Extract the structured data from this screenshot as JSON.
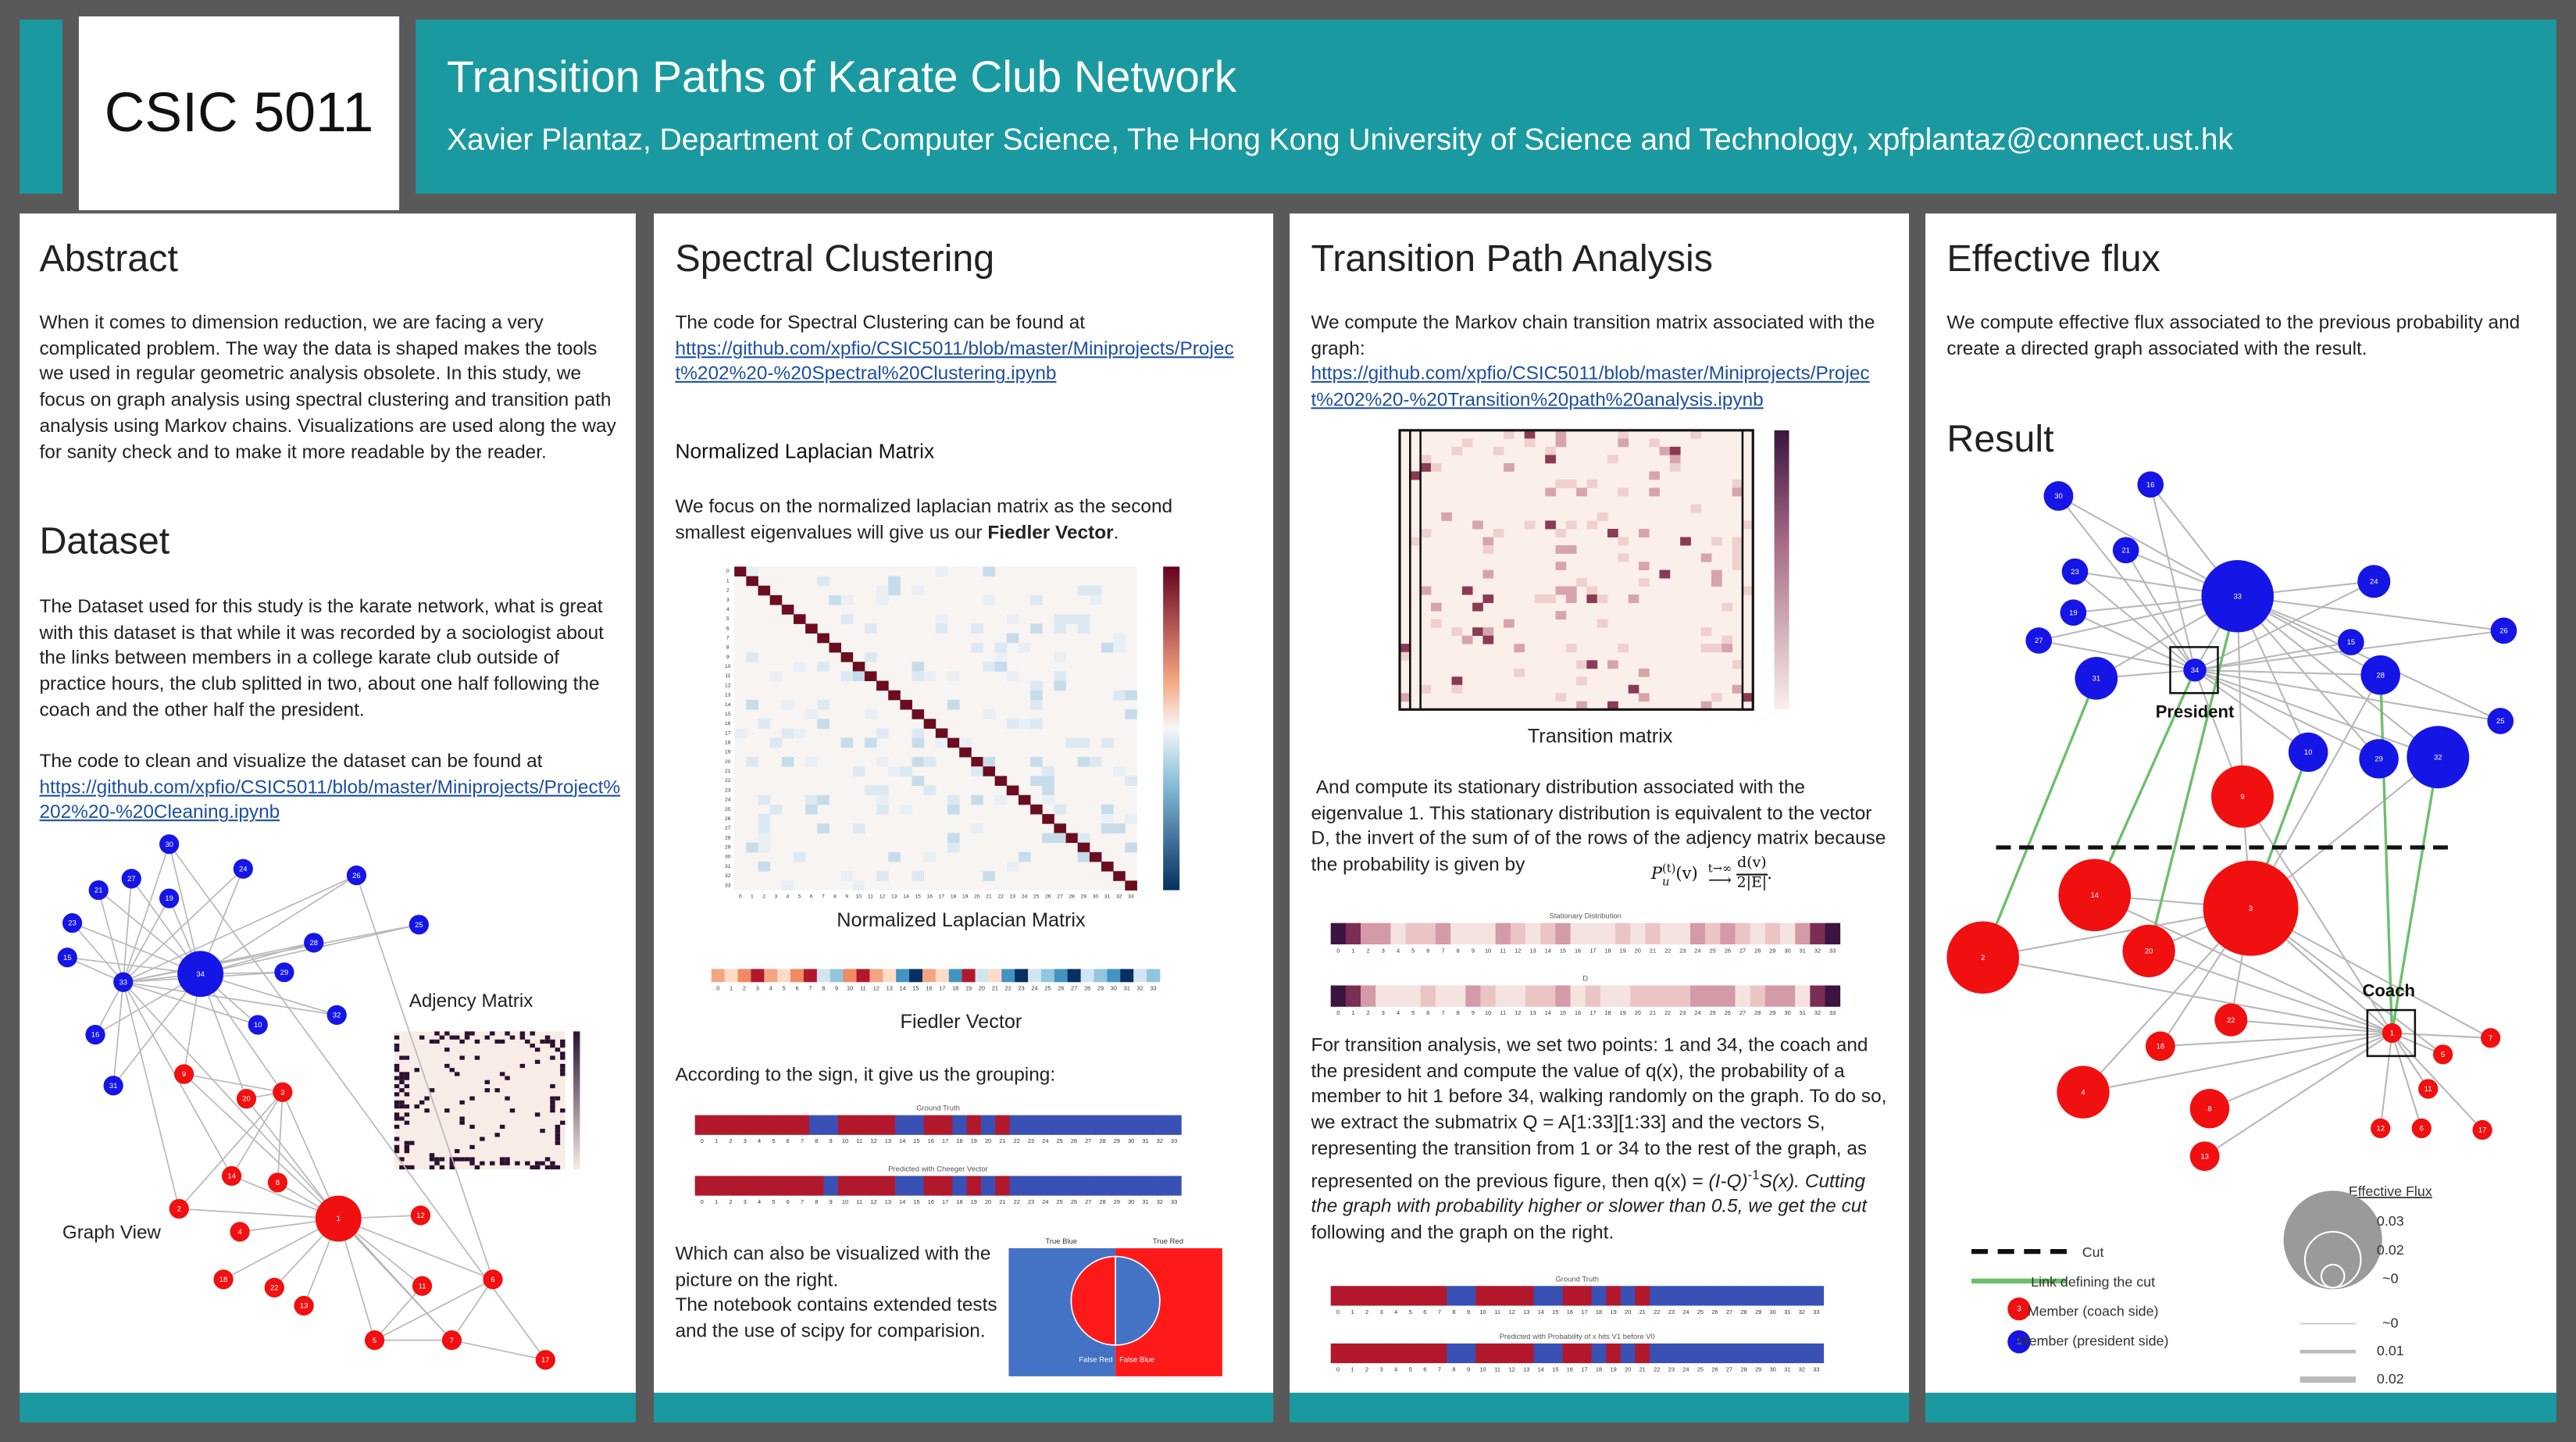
{
  "header": {
    "course": "CSIC 5011",
    "title": "Transition Paths of Karate Club Network",
    "authors": "Xavier Plantaz, Department of Computer Science, The Hong Kong University of Science and Technology, xpfplantaz@connect.ust.hk"
  },
  "abstract": {
    "heading": "Abstract",
    "text": "When it comes to dimension reduction, we are facing a very complicated problem. The way the data is shaped makes the tools we used in regular geometric analysis obsolete. In this study, we focus on graph analysis using spectral clustering and transition path analysis using Markov chains. Visualizations are used along the way for sanity check and to make it more readable by the reader."
  },
  "dataset": {
    "heading": "Dataset",
    "text": "The Dataset used for this study is the karate network, what is great with this dataset is that while it was recorded by a sociologist about the links between members in a college karate club outside of practice hours, the club splitted in two, about one half following the coach and the other half the president.",
    "code_text": "The code to clean and visualize the dataset can be found at",
    "link": "https://github.com/xpfio/CSIC5011/blob/master/Miniprojects/Project%202%20-%20Cleaning.ipynb",
    "adjacency_caption": "Adjency Matrix",
    "graph_caption": "Graph View",
    "graph": {
      "president_side": [
        "30",
        "24",
        "26",
        "21",
        "27",
        "19",
        "23",
        "25",
        "15",
        "34",
        "28",
        "29",
        "33",
        "10",
        "32",
        "16",
        "31"
      ],
      "coach_side": [
        "9",
        "20",
        "3",
        "14",
        "8",
        "2",
        "1",
        "12",
        "4",
        "18",
        "22",
        "13",
        "11",
        "6",
        "5",
        "7",
        "17"
      ]
    }
  },
  "spectral": {
    "heading": "Spectral Clustering",
    "code_text": "The code for Spectral Clustering can be found at",
    "link": "https://github.com/xpfio/CSIC5011/blob/master/Miniprojects/Project%202%20-%20Spectral%20Clustering.ipynb",
    "subheading": "Normalized Laplacian Matrix",
    "laplacian_text": "We focus on the normalized laplacian matrix as the second smallest eigenvalues will give us our ",
    "laplacian_bold": "Fiedler Vector",
    "laplacian_end": ".",
    "laplacian_caption": "Normalized Laplacian Matrix",
    "fiedler_caption": "Fiedler Vector",
    "grouping_text": "According to the sign, it give us the grouping:",
    "truth_label": "Ground Truth",
    "predicted_label": "Predicted with Cheeger Vector",
    "visual_text": "Which can also be visualized with the picture on the right.",
    "notebook_text": "The notebook contains extended tests and the use of scipy for comparision.",
    "confusion": {
      "true_blue": "True Blue",
      "true_red": "True Red",
      "false_red": "False Red",
      "false_blue": "False Blue"
    }
  },
  "transition": {
    "heading": "Transition Path Analysis",
    "intro": "We compute the Markov chain transition matrix associated with the graph:",
    "link": "https://github.com/xpfio/CSIC5011/blob/master/Miniprojects/Project%202%20-%20Transition%20path%20analysis.ipynb",
    "matrix_caption": "Transition matrix",
    "stationary_text": "And compute its stationary distribution associated with the eigenvalue 1. This stationary distribution is equivalent to the vector D, the invert of the sum of of the rows of the adjency matrix because the probability is given by",
    "formula": {
      "lhs": "P",
      "sub": "u",
      "sup": "(t)",
      "arg": "(v)",
      "limit": "t→∞",
      "num": "d(v)",
      "den": "2|E|",
      "end": "."
    },
    "stationary_label": "Stationary Distribution",
    "d_label": "D",
    "analysis": {
      "text": "For transition analysis, we set two points: 1 and 34, the coach and the president and compute the value of q(x), the probability of a member to hit 1 before 34, walking randomly on the graph. To do so, we extract the submatrix Q = A[1:33][1:33] and the vectors S, representing the transition from 1 or 34 to the rest of the graph, as represented on the previous figure, then q(x) = ",
      "inverse": "(I-Q)",
      "exponent": "-1",
      "italic": "S(x). Cutting the graph with probability higher or slower than 0.5, we get the cut",
      "end": " following and the graph on the right."
    },
    "truth_label": "Ground Truth",
    "predicted_label": "Predicted with Probability of x hits V1 before V0"
  },
  "flux": {
    "heading": "Effective flux",
    "text": "We compute effective flux associated to the previous probability and create a directed graph associated with the result.",
    "result_heading": "Result",
    "president_label": "President",
    "coach_label": "Coach",
    "graph": {
      "president_side": [
        "30",
        "16",
        "21",
        "23",
        "33",
        "24",
        "19",
        "27",
        "15",
        "26",
        "31",
        "34",
        "28",
        "25",
        "10",
        "29",
        "32"
      ],
      "coach_side": [
        "9",
        "14",
        "3",
        "2",
        "20",
        "22",
        "18",
        "1",
        "5",
        "7",
        "4",
        "8",
        "11",
        "6",
        "12",
        "17",
        "13"
      ]
    },
    "legend": {
      "cut": "Cut",
      "cut_link": "Link defining the cut",
      "coach_member": "Member (coach side)",
      "president_member": "Member (president side)",
      "coach_node": "3",
      "president_node": "1",
      "flux_title": "Effective Flux",
      "node_flux": [
        "0.03",
        "0.02",
        "~0"
      ],
      "edge_flux": [
        "~0",
        "0.01",
        "0.02"
      ]
    }
  },
  "index_labels": [
    "0",
    "1",
    "2",
    "3",
    "4",
    "5",
    "6",
    "7",
    "8",
    "9",
    "10",
    "11",
    "12",
    "13",
    "14",
    "15",
    "16",
    "17",
    "18",
    "19",
    "20",
    "21",
    "22",
    "23",
    "24",
    "25",
    "26",
    "27",
    "28",
    "29",
    "30",
    "31",
    "32",
    "33"
  ]
}
